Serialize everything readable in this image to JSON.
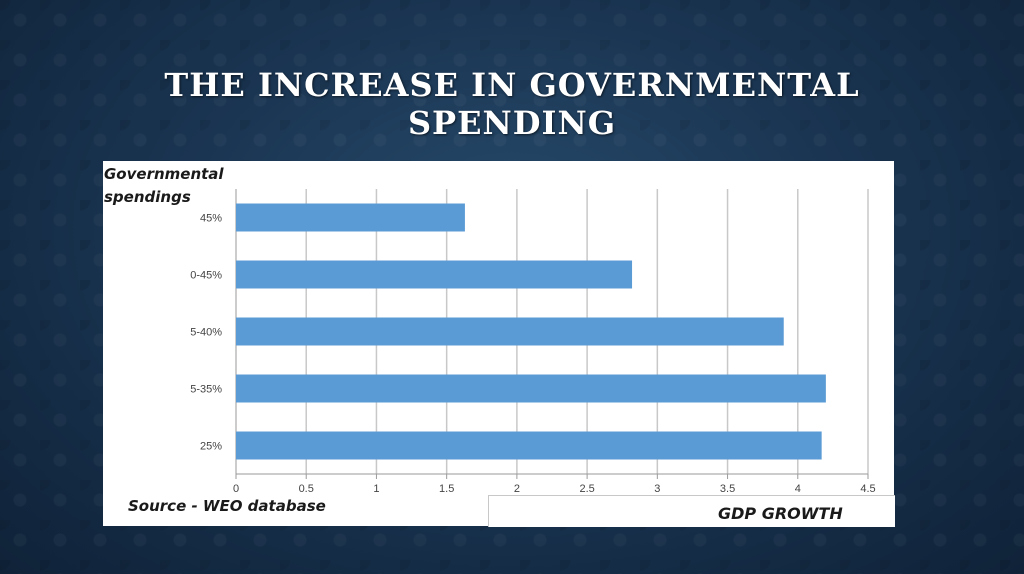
{
  "slide": {
    "title_line1": "THE INCREASE IN GOVERNMENTAL",
    "title_line2": "SPENDING"
  },
  "chart_data": {
    "type": "bar",
    "orientation": "horizontal",
    "ylabel_line1": "Governmental",
    "ylabel_line2": "spendings",
    "xlabel": "GDP GROWTH",
    "source": "Source - WEO database",
    "categories": [
      "45%",
      "0-45%",
      "5-40%",
      "5-35%",
      "25%"
    ],
    "values": [
      1.63,
      2.82,
      3.9,
      4.2,
      4.17
    ],
    "xlim": [
      0,
      4.5
    ],
    "xticks": [
      0,
      0.5,
      1,
      1.5,
      2,
      2.5,
      3,
      3.5,
      4,
      4.5
    ],
    "xtick_labels": [
      "0",
      "0.5",
      "1",
      "1.5",
      "2",
      "2.5",
      "3",
      "3.5",
      "4",
      "4.5"
    ],
    "grid": true,
    "bar_color": "#5b9bd5",
    "grid_color": "#c8c8c8"
  }
}
